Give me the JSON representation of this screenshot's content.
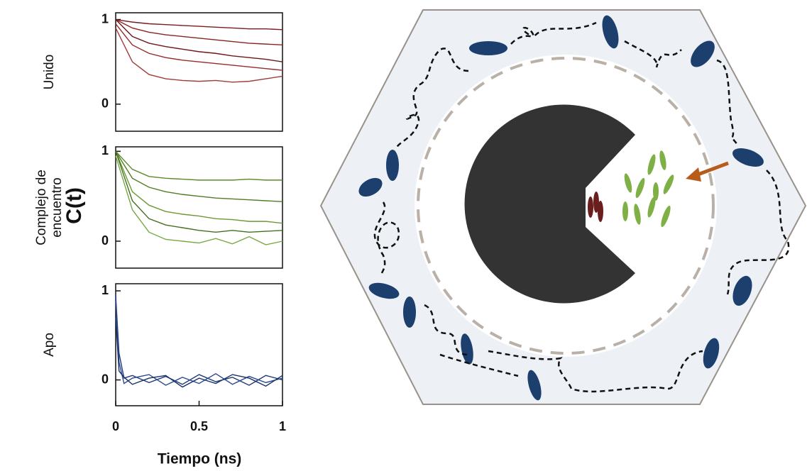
{
  "chart_data": [
    {
      "type": "line",
      "ylabel": "Unido",
      "x": [
        0,
        0.1,
        0.2,
        0.3,
        0.4,
        0.5,
        0.6,
        0.7,
        0.8,
        0.9,
        1
      ],
      "xlim": [
        0,
        1
      ],
      "ylim": [
        -0.32,
        1.08
      ],
      "yticks": [
        0,
        1
      ],
      "series": [
        {
          "color": "#7b1c1c",
          "values": [
            1,
            0.97,
            0.95,
            0.94,
            0.93,
            0.92,
            0.91,
            0.9,
            0.89,
            0.89,
            0.88
          ]
        },
        {
          "color": "#8a2424",
          "values": [
            1,
            0.9,
            0.85,
            0.82,
            0.8,
            0.78,
            0.76,
            0.74,
            0.72,
            0.71,
            0.7
          ]
        },
        {
          "color": "#6e1818",
          "values": [
            1,
            0.8,
            0.72,
            0.68,
            0.65,
            0.62,
            0.6,
            0.57,
            0.55,
            0.53,
            0.5
          ]
        },
        {
          "color": "#962c2c",
          "values": [
            0.95,
            0.7,
            0.6,
            0.55,
            0.52,
            0.5,
            0.48,
            0.46,
            0.44,
            0.42,
            0.4
          ]
        },
        {
          "color": "#a33a3a",
          "values": [
            0.9,
            0.5,
            0.35,
            0.3,
            0.28,
            0.27,
            0.28,
            0.26,
            0.27,
            0.3,
            0.33
          ]
        }
      ]
    },
    {
      "type": "line",
      "ylabel": [
        "Complejo de",
        "encuentro"
      ],
      "x": [
        0,
        0.1,
        0.2,
        0.3,
        0.4,
        0.5,
        0.6,
        0.7,
        0.8,
        0.9,
        1
      ],
      "xlim": [
        0,
        1
      ],
      "ylim": [
        -0.3,
        1.05
      ],
      "yticks": [
        0,
        1
      ],
      "series": [
        {
          "color": "#5a8a2a",
          "values": [
            1,
            0.8,
            0.72,
            0.7,
            0.69,
            0.68,
            0.68,
            0.68,
            0.69,
            0.68,
            0.68
          ]
        },
        {
          "color": "#4f7d24",
          "values": [
            1,
            0.7,
            0.6,
            0.55,
            0.52,
            0.5,
            0.48,
            0.47,
            0.46,
            0.45,
            0.44
          ]
        },
        {
          "color": "#6a9a36",
          "values": [
            1,
            0.55,
            0.4,
            0.33,
            0.3,
            0.28,
            0.25,
            0.24,
            0.22,
            0.22,
            0.2
          ]
        },
        {
          "color": "#45701e",
          "values": [
            1,
            0.45,
            0.25,
            0.18,
            0.15,
            0.12,
            0.1,
            0.12,
            0.1,
            0.11,
            0.12
          ]
        },
        {
          "color": "#78a844",
          "values": [
            0.95,
            0.35,
            0.1,
            0.02,
            0.0,
            -0.02,
            0.03,
            -0.03,
            0.05,
            -0.04,
            0.0
          ]
        }
      ]
    },
    {
      "type": "line",
      "ylabel": "Apo",
      "x": [
        0,
        0.02,
        0.05,
        0.1,
        0.2,
        0.3,
        0.4,
        0.5,
        0.6,
        0.7,
        0.8,
        0.9,
        1
      ],
      "xlim": [
        0,
        1
      ],
      "ylim": [
        -0.29,
        1.08
      ],
      "yticks": [
        0,
        1
      ],
      "xticks": [
        0,
        0.5,
        1
      ],
      "series": [
        {
          "color": "#1f3a7a",
          "values": [
            0.95,
            0.3,
            0.02,
            0.05,
            -0.03,
            0.04,
            -0.05,
            0.06,
            -0.02,
            0.03,
            -0.06,
            0.05,
            0.0
          ]
        },
        {
          "color": "#2a4a90",
          "values": [
            0.9,
            0.2,
            -0.04,
            0.02,
            0.06,
            -0.06,
            0.03,
            -0.04,
            0.07,
            -0.05,
            0.04,
            -0.03,
            0.02
          ]
        },
        {
          "color": "#18306a",
          "values": [
            0.7,
            0.1,
            0.03,
            -0.05,
            0.02,
            0.05,
            -0.08,
            0.02,
            -0.04,
            0.06,
            0.02,
            -0.07,
            0.05
          ]
        }
      ]
    }
  ],
  "shared": {
    "ylabel": "C(t)",
    "xlabel": "Tiempo (ns)"
  }
}
